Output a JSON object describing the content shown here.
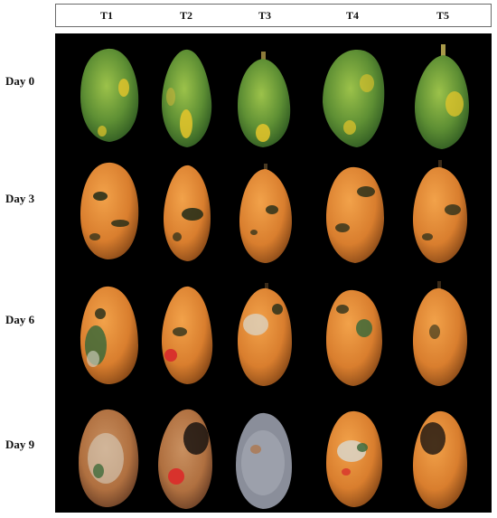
{
  "columns": [
    "T1",
    "T2",
    "T3",
    "T4",
    "T5"
  ],
  "rows": [
    "Day 0",
    "Day 3",
    "Day 6",
    "Day 9"
  ],
  "colors": {
    "background": "#000000",
    "green_fruit": "#6e9b38",
    "yellow_patch": "#e6c52a",
    "orange_fruit": "#e08a3a",
    "dark_spot": "#1f2a18",
    "rot_red": "#d8322c",
    "mold_white": "#d9d5c8"
  }
}
